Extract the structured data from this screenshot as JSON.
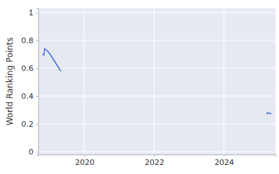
{
  "chart_data": {
    "type": "line",
    "y_label": "World Ranking Points",
    "x": [
      2018.8,
      2018.84,
      2018.86,
      2018.92,
      2019.02,
      2019.32,
      null,
      2025.22,
      2025.26,
      2025.3,
      2025.36
    ],
    "values": [
      0.7,
      0.695,
      0.74,
      0.73,
      0.7,
      0.58,
      null,
      0.27,
      0.28,
      0.275,
      0.275
    ],
    "color": "#4169e1",
    "xlim": [
      2018.68,
      2025.48
    ],
    "xticks": [
      2020,
      2022,
      2024
    ],
    "ylim": [
      -0.02,
      1.03
    ],
    "yticks": [
      0,
      0.2,
      0.4,
      0.6,
      0.8,
      1
    ],
    "grid": true
  }
}
